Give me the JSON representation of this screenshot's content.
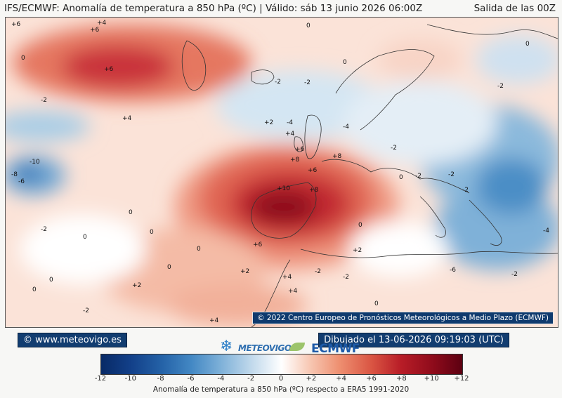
{
  "header": {
    "title": "IFS/ECMWF: Anomalía de temperatura a 850 hPa (ºC) | Válido: sáb 13 junio 2026 06:00Z",
    "run": "Salida de las 00Z"
  },
  "map": {
    "copyright": "© 2022 Centro Europeo de Pronósticos Meteorológicos a Medio Plazo (ECMWF)",
    "contour_labels": [
      "+6",
      "+6",
      "+4",
      "0",
      "0",
      "0",
      "0",
      "0",
      "0",
      "0",
      "0",
      "0",
      "0",
      "0",
      "0",
      "0",
      "0",
      "-2",
      "-2",
      "-2",
      "-2",
      "-2",
      "-2",
      "-2",
      "-2",
      "-2",
      "-2",
      "-2",
      "-2",
      "-2",
      "-4",
      "-4",
      "-4",
      "-6",
      "-6",
      "-8",
      "-10",
      "+2",
      "+2",
      "+2",
      "+2",
      "+4",
      "+4",
      "+4",
      "+4",
      "+6",
      "+6",
      "+8",
      "+8",
      "+10",
      "+8",
      "+6",
      "+6",
      "+4"
    ]
  },
  "footer": {
    "site": "© www.meteovigo.es",
    "drawn": "Dibujado el 13-06-2026 09:19:03 (UTC)",
    "logo_meteovigo": "METEOVIGO",
    "logo_ecmwf": "ECMWF"
  },
  "colorbar": {
    "ticks": [
      "-12",
      "-10",
      "-8",
      "-6",
      "-4",
      "-2",
      "0",
      "+2",
      "+4",
      "+6",
      "+8",
      "+10",
      "+12"
    ],
    "label": "Anomalía de temperatura a 850 hPa (ºC) respecto a ERA5 1991-2020",
    "colors": [
      "#082a66",
      "#2563a8",
      "#7db0d8",
      "#ffffff",
      "#ee8f70",
      "#b81d27",
      "#5c0011"
    ]
  }
}
